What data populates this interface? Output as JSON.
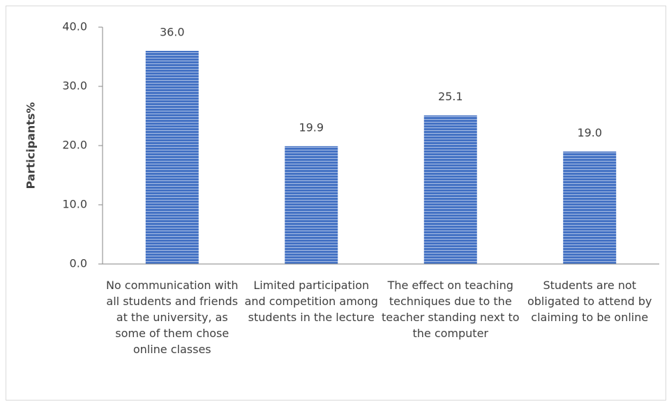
{
  "chart_data": {
    "type": "bar",
    "y_label": "Participants%",
    "categories": [
      "No communication with all students and friends at the university, as some of them chose online classes",
      "Limited participation and competition among students in the lecture",
      "The effect on teaching techniques due to the teacher standing next to the computer",
      "Students are not obligated to attend by claiming to be online"
    ],
    "values": [
      36.0,
      19.9,
      25.1,
      19.0
    ],
    "value_labels": [
      "36.0",
      "19.9",
      "25.1",
      "19.0"
    ],
    "color": "#4472c4",
    "ylim": [
      0,
      40
    ],
    "yticks": [
      {
        "value": 0,
        "label": "0.0"
      },
      {
        "value": 10,
        "label": "10.0"
      },
      {
        "value": 20,
        "label": "20.0"
      },
      {
        "value": 30,
        "label": "30.0"
      },
      {
        "value": 40,
        "label": "40.0"
      }
    ],
    "grid": false
  }
}
